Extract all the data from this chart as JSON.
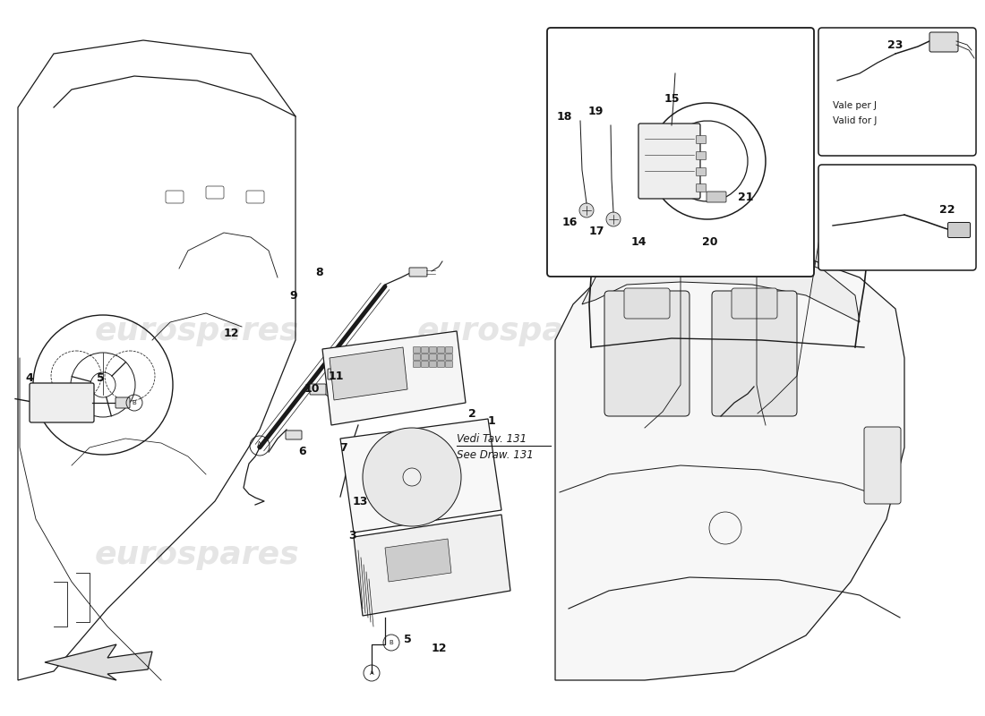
{
  "bg_color": "#ffffff",
  "line_color": "#1a1a1a",
  "lw": 0.9,
  "wm_color": "#d0d0d0",
  "wm_alpha": 0.55,
  "wm_text": "eurospares",
  "vedi_line1": "Vedi Tav. 131",
  "vedi_line2": "See Draw. 131",
  "vale_line1": "Vale per J",
  "vale_line2": "Valid for J",
  "fig_w": 11.0,
  "fig_h": 8.0,
  "dpi": 100
}
